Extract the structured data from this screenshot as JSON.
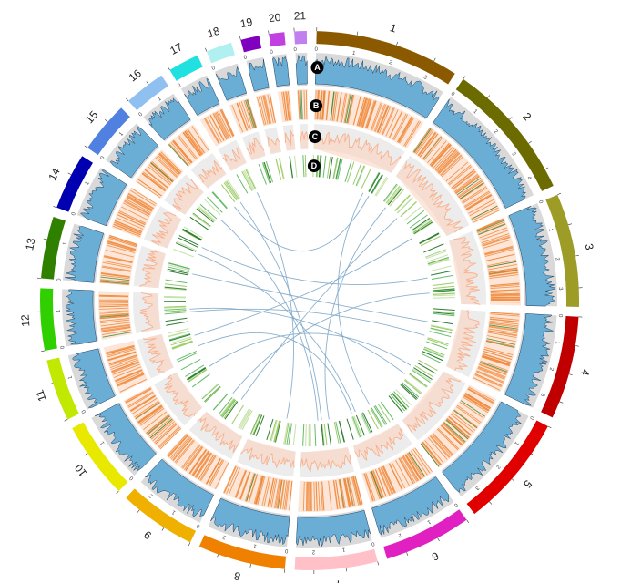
{
  "chromosomes": [
    {
      "name": "1",
      "color": "#8b5a00",
      "ticks": [
        "0",
        "1",
        "2",
        "3"
      ]
    },
    {
      "name": "2",
      "color": "#6b6b00",
      "ticks": [
        "0",
        "1",
        "2",
        "3",
        "4"
      ]
    },
    {
      "name": "3",
      "color": "#9c9c26",
      "ticks": [
        "0",
        "1",
        "2",
        "3"
      ]
    },
    {
      "name": "4",
      "color": "#c00000",
      "ticks": [
        "0",
        "1",
        "2",
        "3"
      ]
    },
    {
      "name": "5",
      "color": "#e00000",
      "ticks": [
        "0",
        "1",
        "2",
        "3"
      ]
    },
    {
      "name": "6",
      "color": "#e020c0",
      "ticks": [
        "0",
        "1",
        "2"
      ]
    },
    {
      "name": "7",
      "color": "#ffc0c8",
      "ticks": [
        "0",
        "1",
        "2"
      ]
    },
    {
      "name": "8",
      "color": "#f08000",
      "ticks": [
        "0",
        "1",
        "2"
      ]
    },
    {
      "name": "9",
      "color": "#f0b000",
      "ticks": [
        "0",
        "1",
        "2"
      ]
    },
    {
      "name": "10",
      "color": "#e8e800",
      "ticks": [
        "0",
        "1"
      ]
    },
    {
      "name": "11",
      "color": "#c0e800",
      "ticks": [
        "0",
        "1"
      ]
    },
    {
      "name": "12",
      "color": "#30d000",
      "ticks": [
        "0",
        "1"
      ]
    },
    {
      "name": "13",
      "color": "#308000",
      "ticks": [
        "0",
        "1"
      ]
    },
    {
      "name": "14",
      "color": "#0000b0",
      "ticks": [
        "0",
        "1"
      ]
    },
    {
      "name": "15",
      "color": "#5080e0",
      "ticks": [
        "0",
        "1"
      ]
    },
    {
      "name": "16",
      "color": "#90c0f0",
      "ticks": [
        "0",
        "1"
      ]
    },
    {
      "name": "17",
      "color": "#20e0e0",
      "ticks": [
        "0"
      ]
    },
    {
      "name": "18",
      "color": "#b0f0f0",
      "ticks": [
        "0"
      ]
    },
    {
      "name": "19",
      "color": "#8000c0",
      "ticks": [
        "0"
      ]
    },
    {
      "name": "20",
      "color": "#c040e0",
      "ticks": [
        "0"
      ]
    },
    {
      "name": "21",
      "color": "#c080f0",
      "ticks": [
        "0"
      ]
    }
  ],
  "track_labels": [
    "A",
    "B",
    "C",
    "D"
  ],
  "links": [
    [
      1,
      0.9,
      16,
      0.4
    ],
    [
      2,
      0.15,
      7,
      0.3
    ],
    [
      3,
      0.5,
      14,
      0.5
    ],
    [
      2,
      0.8,
      11,
      0.7
    ],
    [
      4,
      0.3,
      13,
      0.6
    ],
    [
      5,
      0.4,
      12,
      0.5
    ],
    [
      6,
      0.7,
      14,
      0.2
    ],
    [
      7,
      0.6,
      15,
      0.7
    ],
    [
      8,
      0.3,
      17,
      0.8
    ],
    [
      9,
      0.5,
      2,
      0.4
    ],
    [
      10,
      0.7,
      5,
      0.2
    ],
    [
      11,
      0.3,
      6,
      0.8
    ],
    [
      12,
      0.4,
      4,
      0.6
    ],
    [
      16,
      0.8,
      7,
      0.5
    ],
    [
      3,
      0.8,
      9,
      0.8
    ],
    [
      1,
      0.8,
      6,
      0.3
    ]
  ],
  "colors": {
    "track_a_fill": "#6aaed6",
    "track_a_bg": "#d9d9d9",
    "track_b_bar": "#f08a3c",
    "track_c_line": "#f7a880",
    "track_d_bar": "#5a9a3a",
    "link": "#7da7c9",
    "badge": "#000000"
  }
}
